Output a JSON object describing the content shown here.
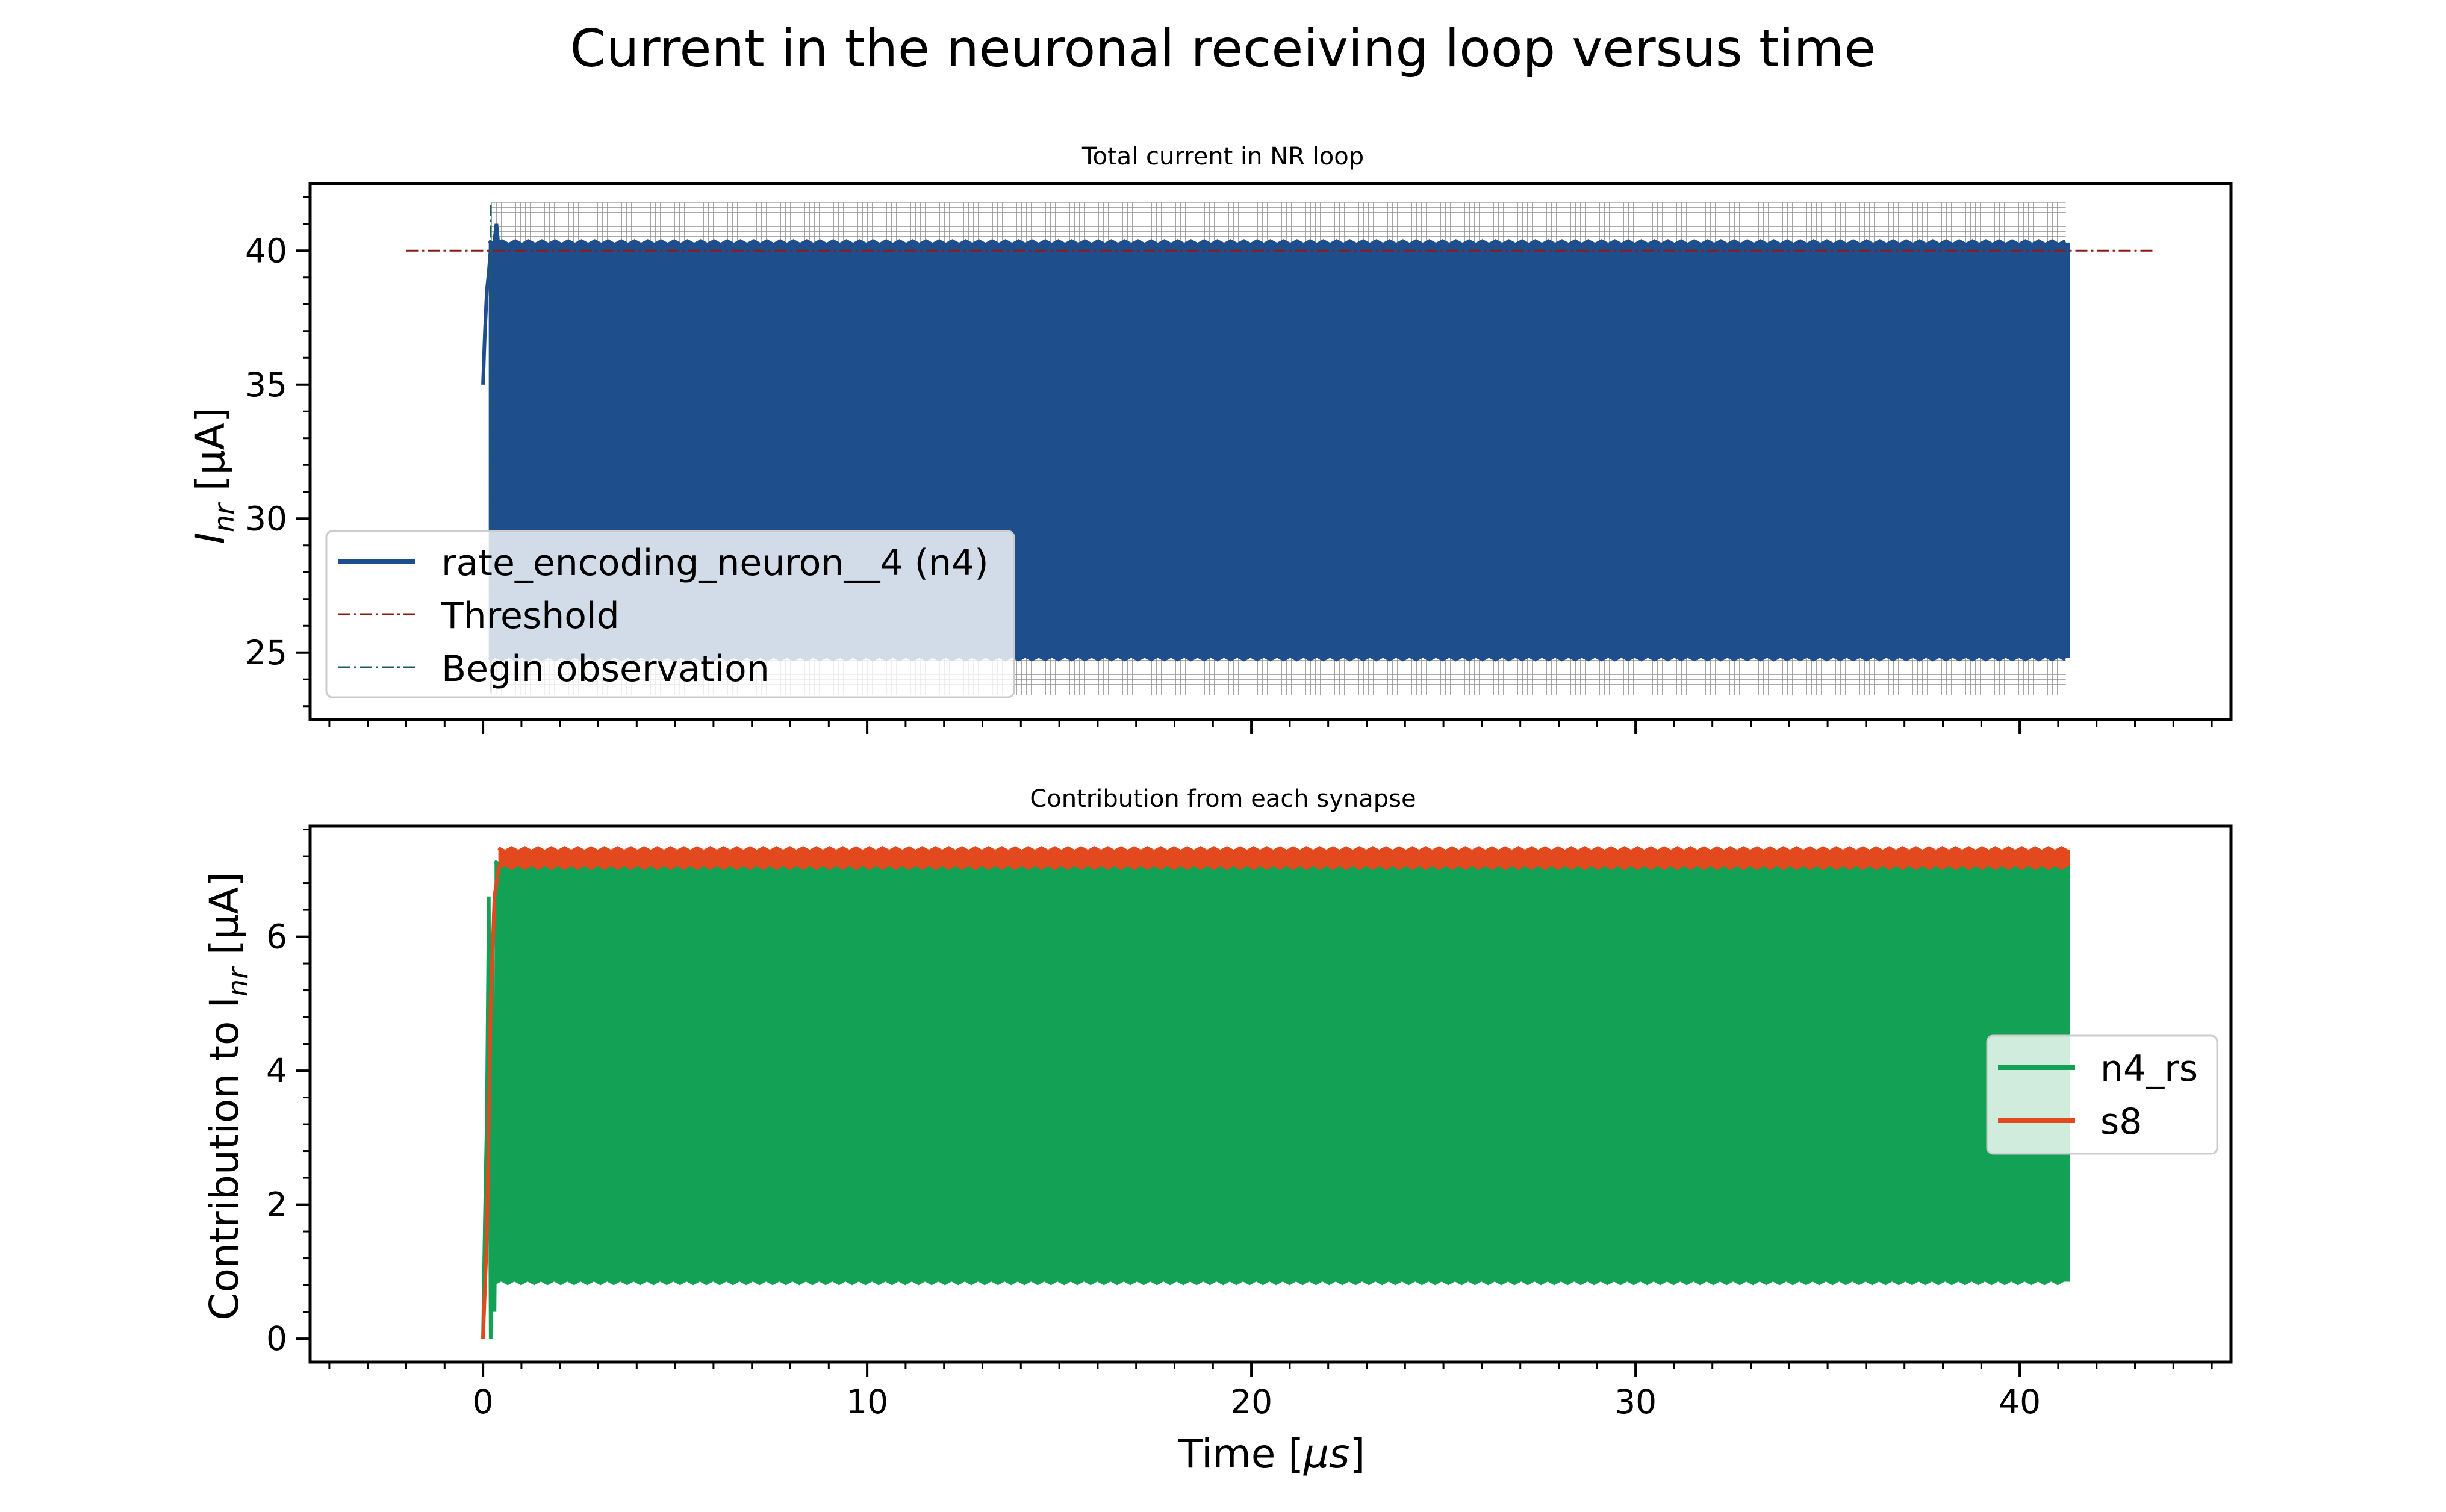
{
  "figure": {
    "suptitle": "Current in the neuronal receiving loop versus time",
    "xlabel": "Time [",
    "xlabel_unit": "μs",
    "xlabel_end": "]",
    "xlim": [
      -4.5,
      45.5
    ],
    "xticks": [
      0,
      10,
      20,
      30,
      40
    ]
  },
  "chart_data": [
    {
      "type": "line",
      "title": "Total current in NR loop",
      "ylabel_base": "I",
      "ylabel_sub": "nr",
      "ylabel_rest": " [μA]",
      "ylim": [
        22.5,
        42.5
      ],
      "yticks": [
        25,
        30,
        35,
        40
      ],
      "grid": false,
      "legend_position": "lower left",
      "series": [
        {
          "name": "rate_encoding_neuron__4 (n4)",
          "color": "#1f4e8c",
          "style": "oscillating band",
          "onset_x": [
            0.0,
            0.05,
            0.1,
            0.15,
            0.2,
            0.25,
            0.3,
            0.35,
            0.4
          ],
          "onset_y": [
            35.0,
            37.0,
            38.5,
            39.2,
            40.1,
            39.6,
            40.4,
            41.0,
            40.2
          ],
          "x_start": 0.15,
          "x_end": 41.3,
          "band_low": 24.8,
          "band_high": 40.3
        },
        {
          "name": "Threshold",
          "color": "#8b1a1a",
          "style": "dash-dot",
          "x": [
            -2,
            43.5
          ],
          "y": [
            40,
            40
          ]
        },
        {
          "name": "Begin observation",
          "color": "#1b5e5e",
          "style": "dash-dot",
          "x": [
            0.2,
            0.2
          ],
          "y": [
            23.5,
            41.7
          ]
        }
      ],
      "spike_markers": {
        "color": "#333333",
        "x_start": 0.2,
        "x_end": 41.2,
        "y_low": 23.4,
        "y_high": 41.8
      }
    },
    {
      "type": "line",
      "title": "Contribution from each synapse",
      "ylabel_base": "Contribution to I",
      "ylabel_sub": "nr",
      "ylabel_rest": " [μA]",
      "ylim": [
        -0.35,
        7.65
      ],
      "yticks": [
        0,
        2,
        4,
        6
      ],
      "grid": false,
      "legend_position": "center right",
      "series": [
        {
          "name": "n4_rs",
          "color": "#12a155",
          "style": "oscillating band",
          "onset_x": [
            0.0,
            0.05,
            0.1,
            0.15,
            0.2,
            0.25,
            0.3,
            0.4
          ],
          "onset_y": [
            0.0,
            1.8,
            3.3,
            6.6,
            0.0,
            5.8,
            0.4,
            6.9
          ],
          "x_start": 0.3,
          "x_end": 41.3,
          "band_low": 0.85,
          "band_high": 7.1
        },
        {
          "name": "s8",
          "color": "#e2491e",
          "style": "oscillating band",
          "onset_x": [
            0.0,
            0.1,
            0.2,
            0.3,
            0.4,
            0.5
          ],
          "onset_y": [
            0.0,
            1.5,
            5.0,
            6.6,
            7.0,
            7.2
          ],
          "x_start": 0.4,
          "x_end": 41.3,
          "band_low": 7.05,
          "band_high": 7.3
        }
      ]
    }
  ]
}
